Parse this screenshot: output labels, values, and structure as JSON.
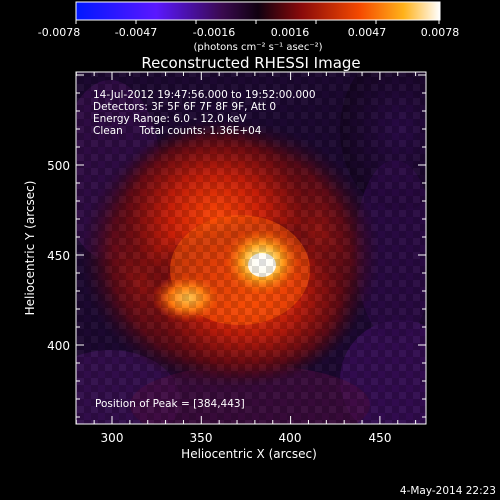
{
  "colorbar": {
    "ticks": [
      "-0.0078",
      "-0.0047",
      "-0.0016",
      "0.0016",
      "0.0047",
      "0.0078"
    ],
    "units": "(photons cm⁻² s⁻¹ asec⁻²)"
  },
  "plot": {
    "title": "Reconstructed RHESSI Image",
    "xlabel": "Heliocentric X (arcsec)",
    "ylabel": "Heliocentric Y (arcsec)",
    "xticks": [
      "300",
      "350",
      "400",
      "450"
    ],
    "yticks": [
      "500",
      "450",
      "400"
    ],
    "info_lines": [
      "14-Jul-2012 19:47:56.000 to 19:52:00.000",
      "Detectors: 3F 5F 6F 7F 8F 9F, Att 0",
      "Energy Range: 6.0 - 12.0 keV",
      "Clean     Total counts: 1.36E+04"
    ],
    "peak_label": "Position of Peak = [384,443]",
    "peak": [
      384,
      443
    ],
    "xlim": [
      280,
      475
    ],
    "ylim": [
      355,
      540
    ]
  },
  "footer": {
    "date": "4-May-2014 22:23"
  }
}
